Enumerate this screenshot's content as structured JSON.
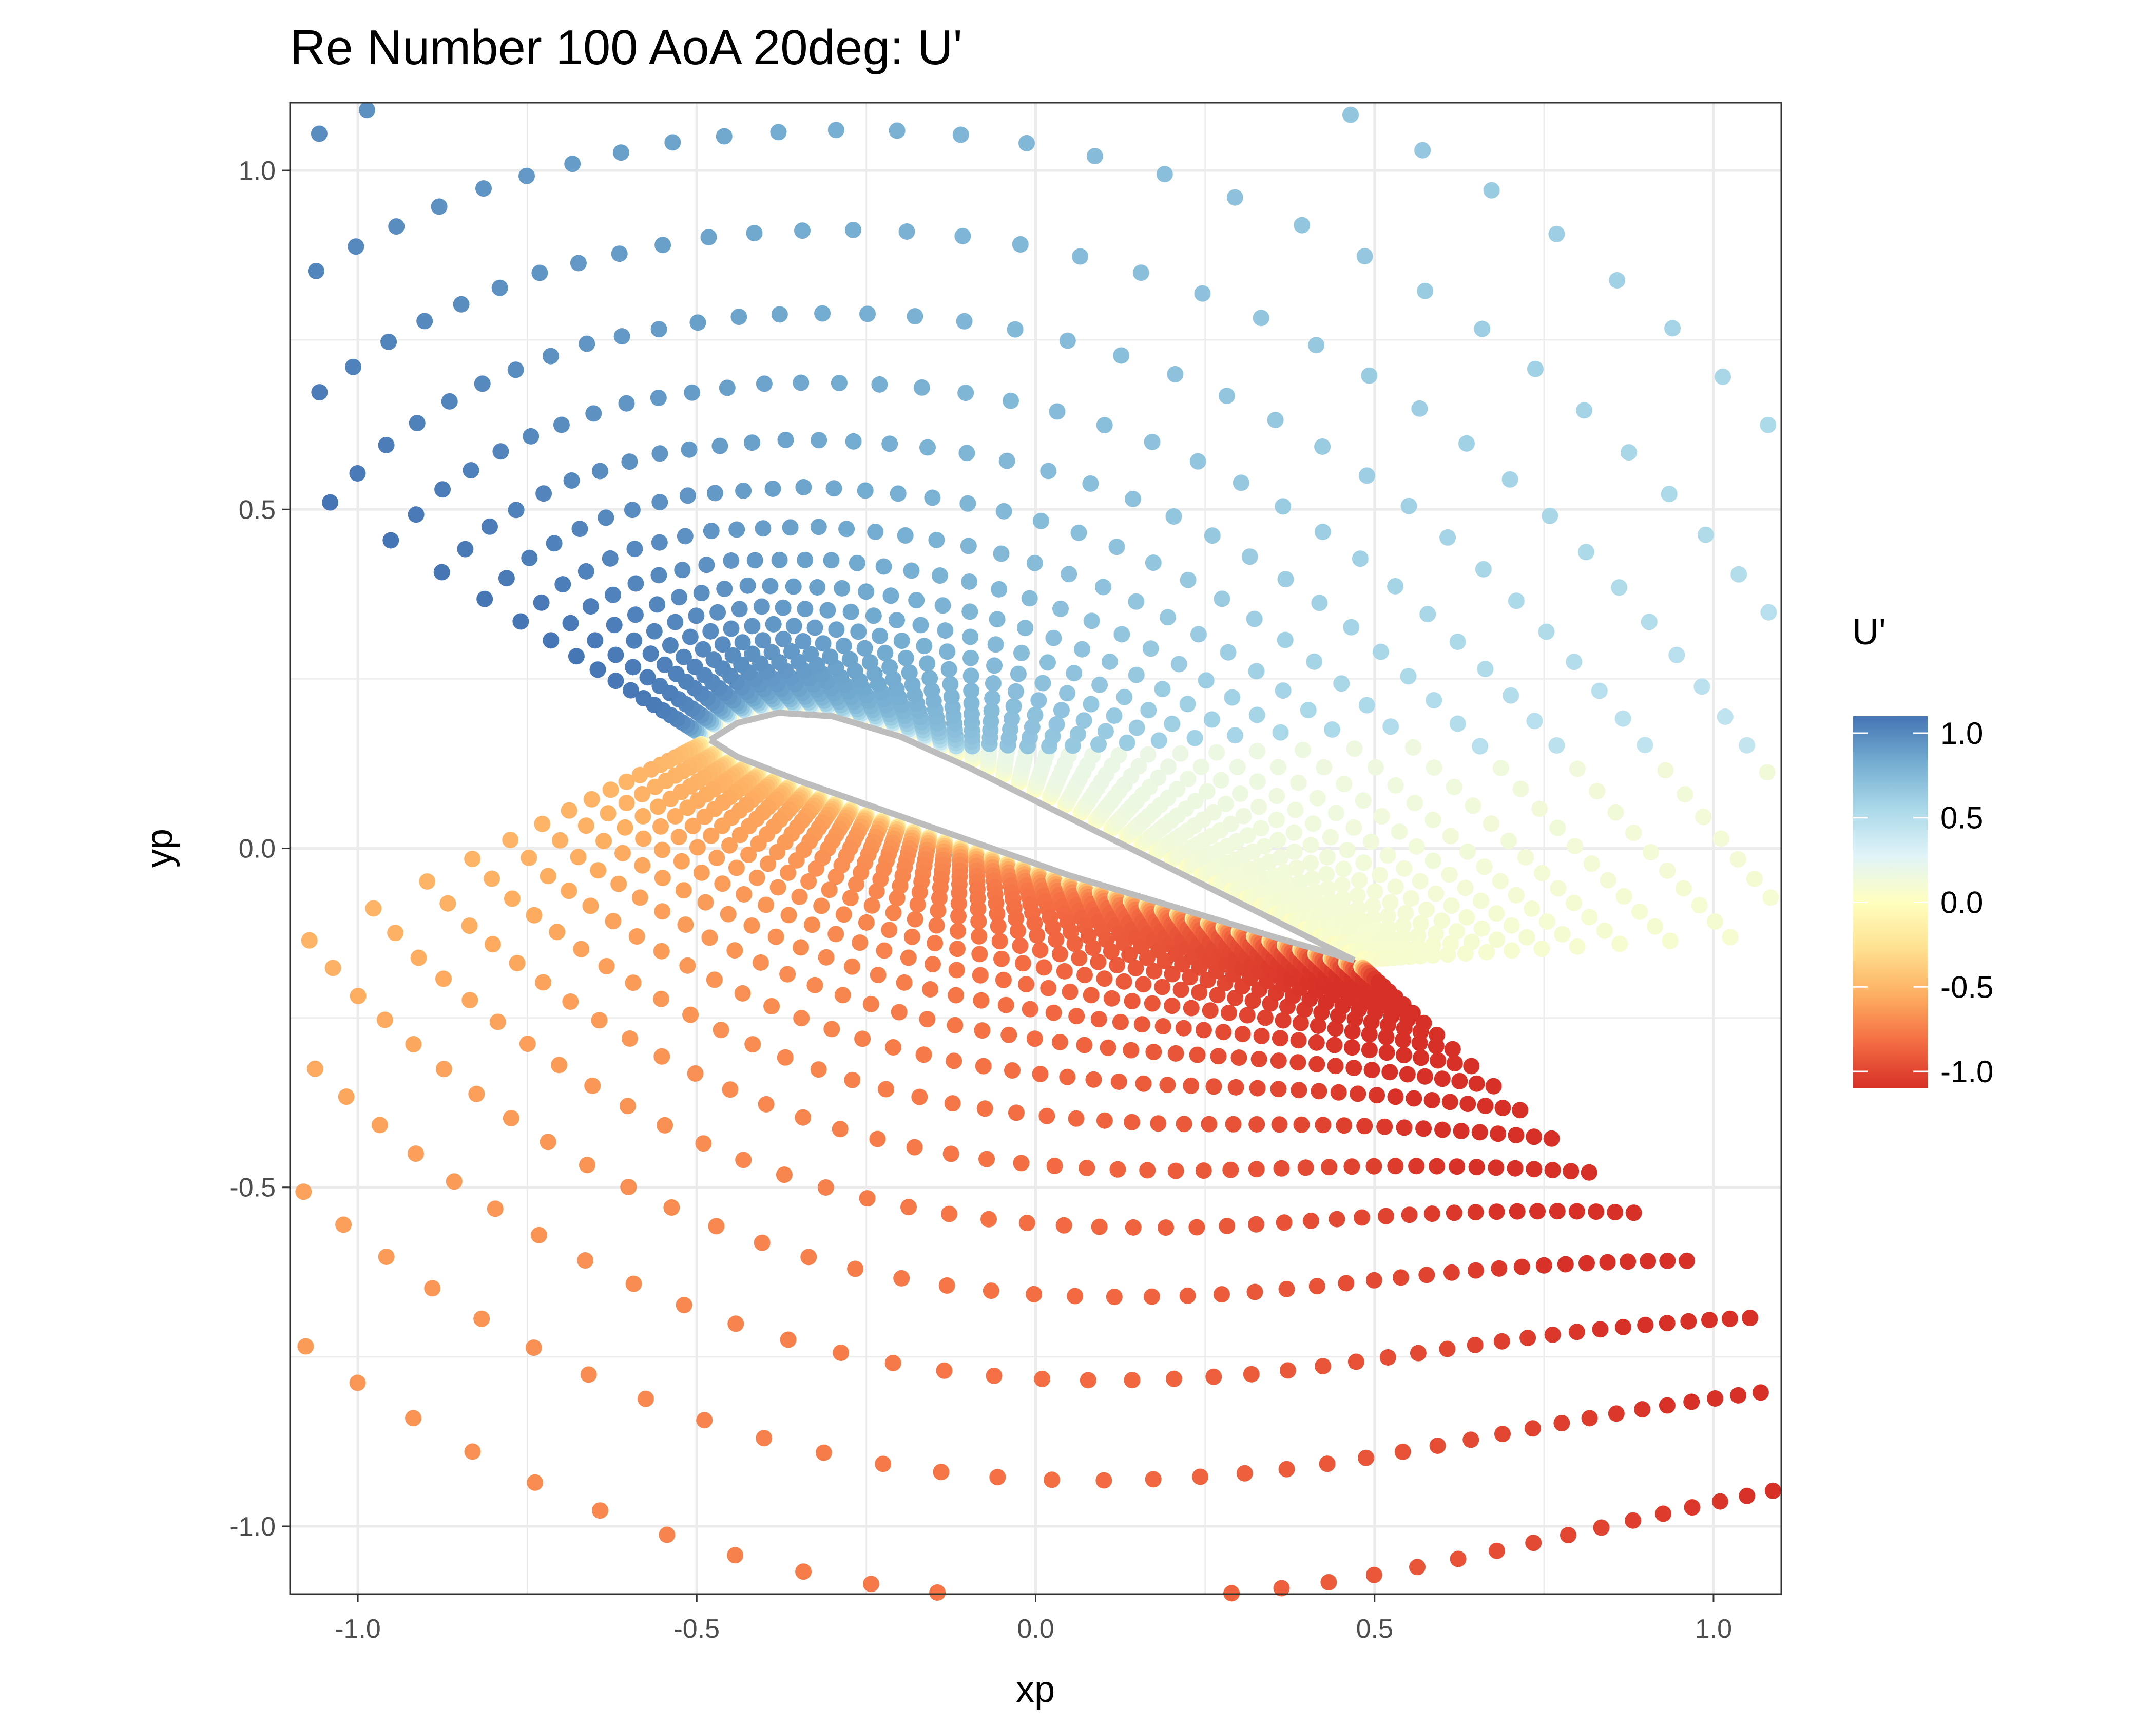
{
  "chart_data": {
    "type": "scatter",
    "title": "Re Number 100 AoA 20deg: U'",
    "xlabel": "xp",
    "ylabel": "yp",
    "xlim": [
      -1.1,
      1.1
    ],
    "ylim": [
      -1.1,
      1.1
    ],
    "x_ticks": [
      -1.0,
      -0.5,
      0.0,
      0.5,
      1.0
    ],
    "x_tick_labels": [
      "-1.0",
      "-0.5",
      "0.0",
      "0.5",
      "1.0"
    ],
    "y_ticks": [
      -1.0,
      -0.5,
      0.0,
      0.5,
      1.0
    ],
    "y_tick_labels": [
      "-1.0",
      "-0.5",
      "0.0",
      "0.5",
      "1.0"
    ],
    "grid": true,
    "theme": "bw",
    "airfoil": {
      "leading_edge": [
        -0.48,
        0.16
      ],
      "trailing_edge": [
        0.47,
        -0.165
      ],
      "color": "#bdbdbd",
      "upper_surface": [
        [
          -0.48,
          0.16
        ],
        [
          -0.44,
          0.185
        ],
        [
          -0.38,
          0.2
        ],
        [
          -0.3,
          0.195
        ],
        [
          -0.2,
          0.165
        ],
        [
          -0.1,
          0.12
        ],
        [
          0.0,
          0.07
        ],
        [
          0.1,
          0.02
        ],
        [
          0.2,
          -0.03
        ],
        [
          0.3,
          -0.08
        ],
        [
          0.4,
          -0.13
        ],
        [
          0.47,
          -0.165
        ]
      ],
      "lower_surface": [
        [
          -0.48,
          0.16
        ],
        [
          -0.44,
          0.135
        ],
        [
          -0.35,
          0.1
        ],
        [
          -0.25,
          0.065
        ],
        [
          -0.15,
          0.03
        ],
        [
          -0.05,
          -0.005
        ],
        [
          0.05,
          -0.04
        ],
        [
          0.15,
          -0.07
        ],
        [
          0.25,
          -0.1
        ],
        [
          0.35,
          -0.13
        ],
        [
          0.47,
          -0.165
        ]
      ]
    },
    "points": {
      "description_of_grid": "O-type grid around airfoil; radial lines emanating from airfoil surface, points colored by U' value",
      "center": [
        -0.5,
        0.35
      ],
      "value_range": [
        -1.1,
        1.1
      ]
    },
    "colorbar": {
      "title": "U'",
      "ticks": [
        1.0,
        0.5,
        0.0,
        -0.5,
        -1.0
      ],
      "tick_labels": [
        "1.0",
        "0.5",
        "0.0",
        "-0.5",
        "-1.0"
      ],
      "range": [
        -1.1,
        1.1
      ],
      "palette": [
        "#4575b4",
        "#74add1",
        "#abd9e9",
        "#e0f3f8",
        "#ffffbf",
        "#fee090",
        "#fdae61",
        "#f46d43",
        "#d73027"
      ]
    }
  }
}
